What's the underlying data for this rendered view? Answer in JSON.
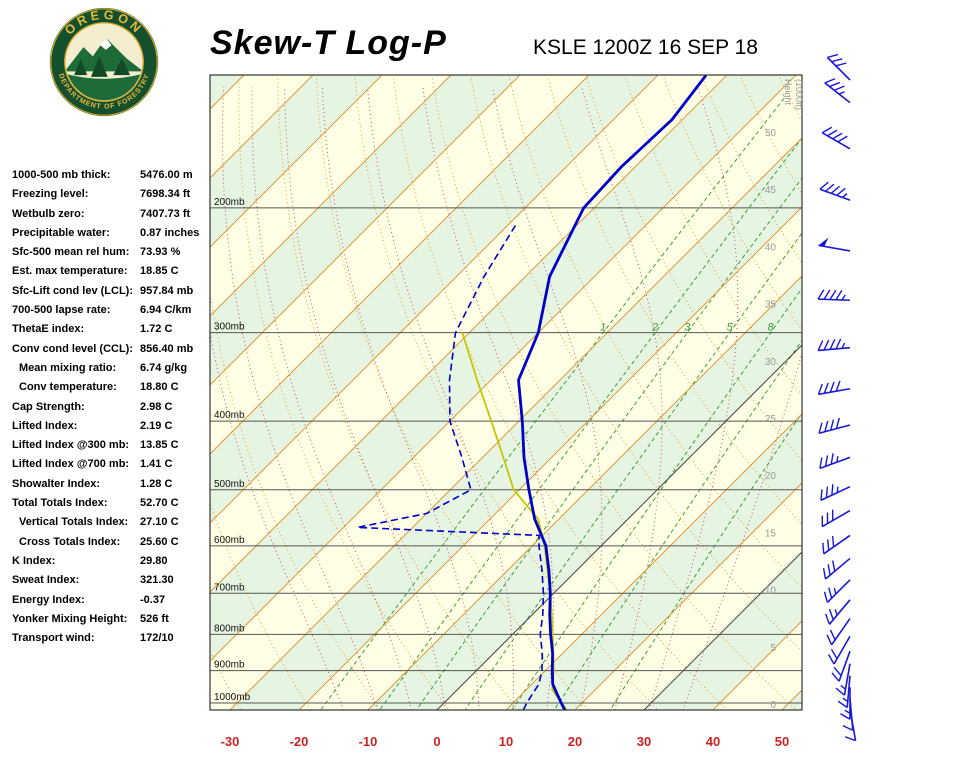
{
  "header": {
    "title": "Skew-T Log-P",
    "station": "KSLE 1200Z 16 SEP 18"
  },
  "logo": {
    "top_text": "OREGON",
    "bottom_text": "DEPARTMENT OF FORESTRY"
  },
  "indices": [
    {
      "label": "1000-500 mb thick:",
      "value": "5476.00 m",
      "indent": false
    },
    {
      "label": "Freezing level:",
      "value": "7698.34 ft",
      "indent": false
    },
    {
      "label": "Wetbulb zero:",
      "value": "7407.73 ft",
      "indent": false
    },
    {
      "label": "Precipitable water:",
      "value": "0.87 inches",
      "indent": false
    },
    {
      "label": "Sfc-500 mean rel hum:",
      "value": "73.93 %",
      "indent": false
    },
    {
      "label": "Est. max temperature:",
      "value": "18.85 C",
      "indent": false
    },
    {
      "label": "Sfc-Lift cond lev (LCL):",
      "value": "957.84 mb",
      "indent": false
    },
    {
      "label": "700-500 lapse rate:",
      "value": "6.94 C/km",
      "indent": false
    },
    {
      "label": "ThetaE index:",
      "value": "1.72 C",
      "indent": false
    },
    {
      "label": "Conv cond level (CCL):",
      "value": "856.40 mb",
      "indent": false
    },
    {
      "label": "Mean mixing ratio:",
      "value": "6.74 g/kg",
      "indent": true
    },
    {
      "label": "Conv temperature:",
      "value": "18.80 C",
      "indent": true
    },
    {
      "label": "Cap Strength:",
      "value": "2.98 C",
      "indent": false
    },
    {
      "label": "Lifted Index:",
      "value": "2.19 C",
      "indent": false
    },
    {
      "label": "Lifted Index @300 mb:",
      "value": "13.85 C",
      "indent": false
    },
    {
      "label": "Lifted Index @700 mb:",
      "value": "1.41 C",
      "indent": false
    },
    {
      "label": "Showalter Index:",
      "value": "1.28 C",
      "indent": false
    },
    {
      "label": "Total Totals Index:",
      "value": "52.70 C",
      "indent": false
    },
    {
      "label": "Vertical Totals Index:",
      "value": "27.10 C",
      "indent": true
    },
    {
      "label": "Cross Totals Index:",
      "value": "25.60 C",
      "indent": true
    },
    {
      "label": "K Index:",
      "value": "29.80",
      "indent": false
    },
    {
      "label": "Sweat Index:",
      "value": "321.30",
      "indent": false
    },
    {
      "label": "Energy Index:",
      "value": "-0.37",
      "indent": false
    },
    {
      "label": "Yonker Mixing Height:",
      "value": "526 ft",
      "indent": false
    },
    {
      "label": "Transport wind:",
      "value": "172/10",
      "indent": false
    }
  ],
  "chart_data": {
    "type": "skew-t-log-p",
    "title": "Skew-T Log-P",
    "station": "KSLE 1200Z 16 SEP 18",
    "pressure_lines_mb": [
      200,
      300,
      400,
      500,
      600,
      700,
      800,
      900,
      1000
    ],
    "temp_ticks_c": [
      -30,
      -20,
      -10,
      0,
      10,
      20,
      30,
      40,
      50
    ],
    "height_axis": {
      "label_line1": "Height",
      "label_line2": "(1000ft)",
      "ticks_1000ft": [
        0,
        5,
        10,
        15,
        20,
        25,
        30,
        35,
        40,
        45,
        50
      ]
    },
    "mixing_ratio_lines_gkg": [
      1,
      2,
      3,
      5,
      8,
      12,
      20
    ],
    "mixing_ratio_labels": [
      1,
      2,
      3,
      5,
      8
    ],
    "temperature_profile": [
      [
        1023,
        18.5
      ],
      [
        1000,
        17.0
      ],
      [
        970,
        15.0
      ],
      [
        940,
        13.0
      ],
      [
        900,
        11.0
      ],
      [
        850,
        8.5
      ],
      [
        800,
        5.5
      ],
      [
        750,
        2.5
      ],
      [
        700,
        -0.5
      ],
      [
        650,
        -4.0
      ],
      [
        600,
        -8.0
      ],
      [
        550,
        -13.5
      ],
      [
        500,
        -18.6
      ],
      [
        450,
        -24.0
      ],
      [
        400,
        -29.5
      ],
      [
        350,
        -36.0
      ],
      [
        300,
        -40.0
      ],
      [
        250,
        -46.5
      ],
      [
        200,
        -51.5
      ],
      [
        175,
        -52.0
      ],
      [
        150,
        -51.5
      ],
      [
        130,
        -53.0
      ]
    ],
    "dewpoint_profile": [
      [
        1023,
        12.5
      ],
      [
        1000,
        12.0
      ],
      [
        970,
        11.5
      ],
      [
        940,
        11.0
      ],
      [
        900,
        9.5
      ],
      [
        850,
        7.0
      ],
      [
        800,
        4.0
      ],
      [
        750,
        1.5
      ],
      [
        700,
        -1.5
      ],
      [
        650,
        -5.0
      ],
      [
        600,
        -9.0
      ],
      [
        580,
        -10.5
      ],
      [
        565,
        -38.0
      ],
      [
        540,
        -30.0
      ],
      [
        500,
        -27.0
      ],
      [
        450,
        -33.0
      ],
      [
        400,
        -40.0
      ],
      [
        350,
        -46.0
      ],
      [
        300,
        -52.0
      ],
      [
        250,
        -56.0
      ],
      [
        210,
        -59.0
      ]
    ],
    "parcel_profile": [
      [
        1023,
        18.8
      ],
      [
        958,
        13.8
      ],
      [
        900,
        11.2
      ],
      [
        850,
        8.6
      ],
      [
        800,
        5.8
      ],
      [
        750,
        2.8
      ],
      [
        700,
        -0.5
      ],
      [
        650,
        -4.2
      ],
      [
        600,
        -8.2
      ],
      [
        550,
        -13.0
      ],
      [
        500,
        -20.8
      ],
      [
        450,
        -27.0
      ],
      [
        400,
        -34.0
      ],
      [
        350,
        -42.0
      ],
      [
        300,
        -51.0
      ]
    ],
    "winds_p_dir_spd": [
      [
        1020,
        170,
        10
      ],
      [
        985,
        175,
        10
      ],
      [
        950,
        180,
        15
      ],
      [
        915,
        185,
        15
      ],
      [
        880,
        190,
        15
      ],
      [
        845,
        200,
        20
      ],
      [
        805,
        210,
        20
      ],
      [
        760,
        215,
        20
      ],
      [
        715,
        220,
        25
      ],
      [
        670,
        225,
        25
      ],
      [
        625,
        230,
        30
      ],
      [
        580,
        235,
        30
      ],
      [
        535,
        240,
        30
      ],
      [
        495,
        245,
        35
      ],
      [
        450,
        250,
        35
      ],
      [
        405,
        255,
        40
      ],
      [
        360,
        260,
        40
      ],
      [
        315,
        265,
        45
      ],
      [
        270,
        272,
        45
      ],
      [
        230,
        280,
        50
      ],
      [
        195,
        290,
        45
      ],
      [
        165,
        300,
        40
      ],
      [
        142,
        308,
        35
      ],
      [
        131,
        315,
        30
      ]
    ],
    "colors": {
      "band_yellow": "#FFFFE6",
      "band_green": "#E6F5E2",
      "isotherm": "#E0983C",
      "isotherm_dark": "#444444",
      "dry_adiabat": "#E0983C",
      "moist_adiabat": "#CC5060",
      "mixing_ratio": "#3C9E3C",
      "pressure_line": "#555555",
      "border": "#333333",
      "temp_axis_label": "#CC2222",
      "height_label": "#999999",
      "pressure_label": "#111111",
      "sounding_blue": "#0000CC",
      "parcel_yellow": "#C6C600",
      "barb_blue": "#1818D8"
    }
  }
}
